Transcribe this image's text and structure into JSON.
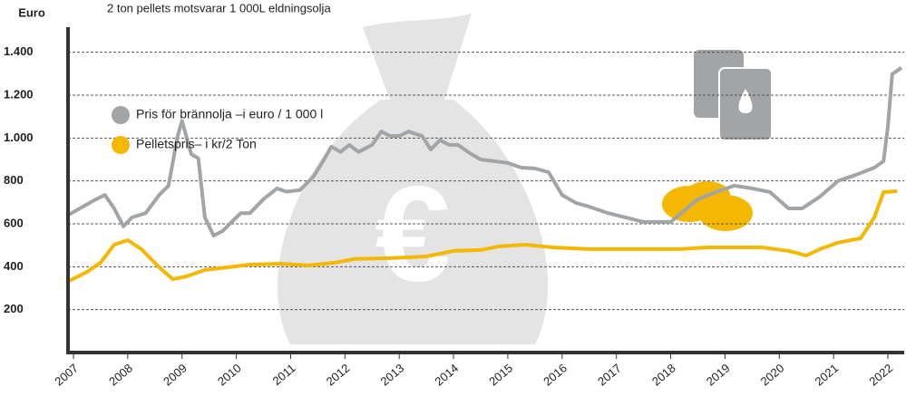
{
  "chart_data": {
    "type": "line",
    "title": "2 ton pellets motsvarar 1 000L eldningsolja",
    "y_label": "Euro",
    "xlim": [
      2006.9,
      2022.3
    ],
    "xticks": [
      2007,
      2008,
      2009,
      2010,
      2011,
      2012,
      2013,
      2014,
      2015,
      2016,
      2017,
      2018,
      2019,
      2020,
      2021,
      2022
    ],
    "ylim": [
      0,
      1500
    ],
    "yticks": [
      200,
      400,
      600,
      800,
      {
        "value": 1000,
        "label": "1.000"
      },
      {
        "value": 1200,
        "label": "1.200"
      },
      {
        "value": 1400,
        "label": "1.400"
      }
    ],
    "grid": true,
    "series": [
      {
        "name": "Pris för brännolja –i euro / 1 000 l",
        "color": "#a2a5a7",
        "x": [
          2006.92,
          2007.17,
          2007.42,
          2007.58,
          2007.75,
          2007.92,
          2008.08,
          2008.33,
          2008.58,
          2008.75,
          2008.92,
          2009.0,
          2009.17,
          2009.3,
          2009.42,
          2009.58,
          2009.75,
          2009.92,
          2010.08,
          2010.25,
          2010.5,
          2010.75,
          2010.92,
          2011.17,
          2011.42,
          2011.58,
          2011.75,
          2011.92,
          2012.08,
          2012.25,
          2012.5,
          2012.67,
          2012.83,
          2013.0,
          2013.17,
          2013.42,
          2013.58,
          2013.75,
          2013.92,
          2014.08,
          2014.33,
          2014.5,
          2014.75,
          2015.0,
          2015.25,
          2015.5,
          2015.75,
          2016.0,
          2016.25,
          2016.5,
          2016.83,
          2017.17,
          2017.5,
          2018.0,
          2018.5,
          2018.83,
          2019.17,
          2019.5,
          2019.83,
          2020.17,
          2020.42,
          2020.75,
          2021.08,
          2021.42,
          2021.75,
          2021.92,
          2022.0,
          2022.08,
          2022.25
        ],
        "values": [
          643,
          680,
          715,
          735,
          672,
          588,
          630,
          650,
          735,
          778,
          1010,
          1080,
          925,
          905,
          630,
          545,
          567,
          610,
          650,
          650,
          715,
          765,
          750,
          757,
          820,
          885,
          960,
          935,
          968,
          935,
          968,
          1030,
          1010,
          1010,
          1030,
          1010,
          947,
          990,
          968,
          968,
          925,
          900,
          892,
          884,
          862,
          858,
          841,
          735,
          698,
          680,
          651,
          630,
          609,
          609,
          715,
          748,
          778,
          765,
          748,
          672,
          672,
          727,
          800,
          829,
          862,
          892,
          1053,
          1298,
          1328
        ]
      },
      {
        "name": "Pelletspris– i kr/2 Ton",
        "color": "#f5b800",
        "x": [
          2006.92,
          2007.25,
          2007.5,
          2007.75,
          2008.0,
          2008.25,
          2008.58,
          2008.83,
          2009.08,
          2009.42,
          2009.83,
          2010.25,
          2010.83,
          2011.33,
          2011.83,
          2012.17,
          2012.83,
          2013.5,
          2014.0,
          2014.5,
          2014.83,
          2015.33,
          2015.83,
          2016.5,
          2017.33,
          2018.17,
          2018.67,
          2019.67,
          2020.17,
          2020.5,
          2020.75,
          2021.08,
          2021.5,
          2021.75,
          2021.92,
          2022.17
        ],
        "values": [
          334,
          376,
          419,
          503,
          524,
          482,
          397,
          342,
          355,
          385,
          397,
          410,
          414,
          406,
          419,
          436,
          440,
          448,
          474,
          478,
          495,
          503,
          490,
          482,
          482,
          482,
          490,
          490,
          474,
          452,
          482,
          512,
          533,
          630,
          748,
          752
        ]
      }
    ]
  }
}
